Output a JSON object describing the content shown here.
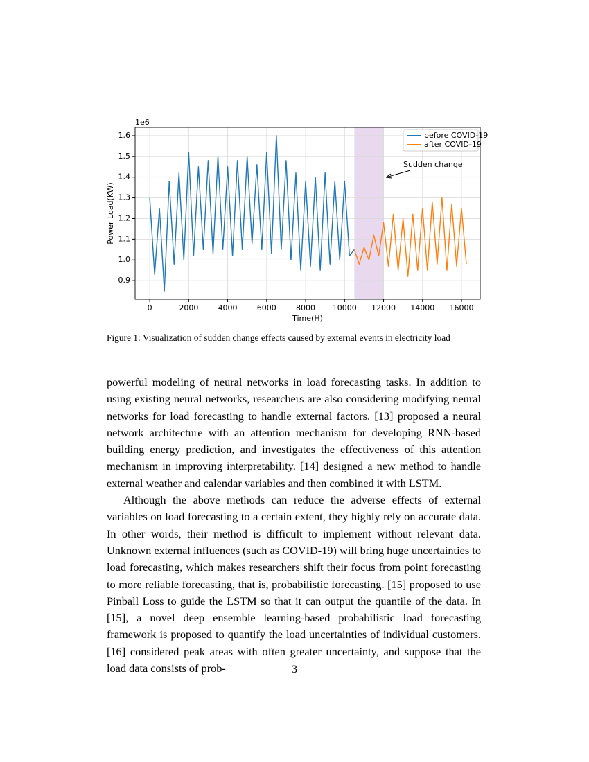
{
  "chart_data": {
    "type": "line",
    "y_scale_label": "1e6",
    "xlabel": "Time(H)",
    "ylabel": "Power Load(KW)",
    "annotation": "Sudden change",
    "span": [
      10500,
      12000
    ],
    "span_color": "#e8d9ee",
    "xlim": [
      -750,
      16960
    ],
    "ylim": [
      0.81,
      1.64
    ],
    "xticks": [
      0,
      2000,
      4000,
      6000,
      8000,
      10000,
      12000,
      14000,
      16000
    ],
    "yticks": [
      0.9,
      {
        "value": 1.0,
        "label": "1.0"
      },
      1.1,
      1.2,
      1.3,
      1.4,
      1.5,
      1.6
    ],
    "grid": true,
    "legend_loc": "upper right",
    "series": [
      {
        "name": "before COVID-19",
        "color": "#1f77b4",
        "x": [
          0,
          250,
          500,
          750,
          1000,
          1250,
          1500,
          1750,
          2000,
          2250,
          2500,
          2750,
          3000,
          3250,
          3500,
          3750,
          4000,
          4250,
          4500,
          4750,
          5000,
          5250,
          5500,
          5750,
          6000,
          6250,
          6500,
          6750,
          7000,
          7250,
          7500,
          7750,
          8000,
          8250,
          8500,
          8750,
          9000,
          9250,
          9500,
          9750,
          10000,
          10250,
          10500
        ],
        "values": [
          1.3,
          0.93,
          1.25,
          0.85,
          1.38,
          0.98,
          1.42,
          1.0,
          1.52,
          1.02,
          1.45,
          1.05,
          1.48,
          1.03,
          1.5,
          1.05,
          1.45,
          1.02,
          1.48,
          1.05,
          1.5,
          1.08,
          1.46,
          1.05,
          1.52,
          1.03,
          1.6,
          1.05,
          1.48,
          1.0,
          1.42,
          0.95,
          1.38,
          0.97,
          1.4,
          0.95,
          1.42,
          0.98,
          1.38,
          1.0,
          1.38,
          1.02,
          1.05
        ]
      },
      {
        "name": "after COVID-19",
        "color": "#ff7f0e",
        "x": [
          10500,
          10750,
          11000,
          11250,
          11500,
          11750,
          12000,
          12250,
          12500,
          12750,
          13000,
          13250,
          13500,
          13750,
          14000,
          14250,
          14500,
          14750,
          15000,
          15250,
          15500,
          15750,
          16000,
          16250
        ],
        "values": [
          1.05,
          0.98,
          1.06,
          1.0,
          1.12,
          1.02,
          1.18,
          0.97,
          1.22,
          0.95,
          1.2,
          0.92,
          1.22,
          0.95,
          1.25,
          0.95,
          1.28,
          0.98,
          1.3,
          0.95,
          1.27,
          0.97,
          1.25,
          0.98
        ]
      }
    ]
  },
  "caption": "Figure 1: Visualization of sudden change effects caused by external events in electricity load",
  "paragraphs": [
    "powerful modeling of neural networks in load forecasting tasks. In addition to using existing neural networks, researchers are also considering modifying neural networks for load forecasting to handle external factors. [13] proposed a neural network architecture with an attention mechanism for developing RNN-based building energy prediction, and investigates the effectiveness of this attention mechanism in improving interpretability. [14] designed a new method to handle external weather and calendar variables and then combined it with LSTM.",
    "Although the above methods can reduce the adverse effects of external variables on load forecasting to a certain extent, they highly rely on accurate data. In other words, their method is difficult to implement without relevant data. Unknown external influences (such as COVID-19) will bring huge uncertainties to load forecasting, which makes researchers shift their focus from point forecasting to more reliable forecasting, that is, probabilistic forecasting. [15] proposed to use Pinball Loss to guide the LSTM so that it can output the quantile of the data. In [15], a novel deep ensemble learning-based probabilistic load forecasting framework is proposed to quantify the load uncertainties of individual customers. [16] considered peak areas with often greater uncertainty, and suppose that the load data consists of prob-"
  ],
  "page_number": "3"
}
